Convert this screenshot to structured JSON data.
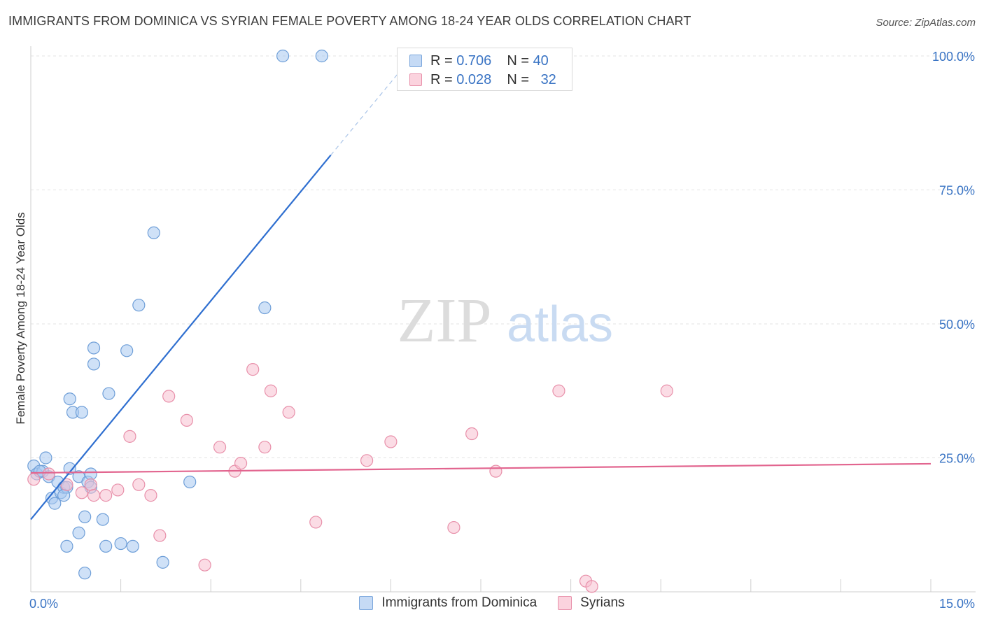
{
  "title": "IMMIGRANTS FROM DOMINICA VS SYRIAN FEMALE POVERTY AMONG 18-24 YEAR OLDS CORRELATION CHART",
  "source": "Source: ZipAtlas.com",
  "watermark": {
    "zip": "ZIP",
    "atlas": "atlas"
  },
  "legend": {
    "rows": [
      {
        "r_label": "R = ",
        "r_value": "0.706",
        "n_label": "N = ",
        "n_value": "40",
        "color": "#a8c8f0",
        "border": "#7aa6dc"
      },
      {
        "r_label": "R = ",
        "r_value": "0.028",
        "n_label": "N = ",
        "n_value": "32",
        "color": "#f8c0d0",
        "border": "#e890aa"
      }
    ]
  },
  "bottom_legend": [
    {
      "label": "Immigrants from Dominica",
      "color": "#c5daf5",
      "border": "#7aa6dc"
    },
    {
      "label": "Syrians",
      "color": "#fbd3de",
      "border": "#e890aa"
    }
  ],
  "chart_data": {
    "type": "scatter",
    "title": "IMMIGRANTS FROM DOMINICA VS SYRIAN FEMALE POVERTY AMONG 18-24 YEAR OLDS CORRELATION CHART",
    "xlabel": "",
    "ylabel": "Female Poverty Among 18-24 Year Olds",
    "xlim": [
      0,
      15
    ],
    "ylim": [
      0,
      100
    ],
    "x_tick_labels": [
      "0.0%",
      "15.0%"
    ],
    "y_tick_labels": [
      "25.0%",
      "50.0%",
      "75.0%",
      "100.0%"
    ],
    "y_ticks": [
      25,
      50,
      75,
      100
    ],
    "grid": true,
    "series": [
      {
        "name": "Immigrants from Dominica",
        "color": "#a8c8f0",
        "stroke": "#6f9fd8",
        "line_color": "#2f6fd0",
        "trend": {
          "x0": 0,
          "y0": 13.5,
          "x1": 5.0,
          "y1": 81.5,
          "dash_to_x": 6.2,
          "dash_to_y": 97.8
        },
        "points": [
          [
            0.05,
            23.5
          ],
          [
            0.1,
            22.0
          ],
          [
            0.2,
            22.5
          ],
          [
            0.3,
            21.5
          ],
          [
            0.25,
            25.0
          ],
          [
            0.35,
            17.5
          ],
          [
            0.4,
            16.5
          ],
          [
            0.45,
            20.5
          ],
          [
            0.5,
            18.5
          ],
          [
            0.55,
            19.5
          ],
          [
            0.6,
            8.5
          ],
          [
            0.6,
            19.5
          ],
          [
            0.65,
            36.0
          ],
          [
            0.7,
            33.5
          ],
          [
            0.65,
            23.0
          ],
          [
            0.8,
            11.0
          ],
          [
            0.8,
            21.5
          ],
          [
            0.85,
            33.5
          ],
          [
            0.9,
            14.0
          ],
          [
            0.9,
            3.5
          ],
          [
            0.95,
            20.5
          ],
          [
            1.0,
            19.5
          ],
          [
            1.0,
            22.0
          ],
          [
            1.05,
            42.5
          ],
          [
            1.05,
            45.5
          ],
          [
            1.2,
            13.5
          ],
          [
            1.25,
            8.5
          ],
          [
            1.3,
            37.0
          ],
          [
            1.5,
            9.0
          ],
          [
            1.6,
            45.0
          ],
          [
            1.7,
            8.5
          ],
          [
            1.8,
            53.5
          ],
          [
            2.05,
            67.0
          ],
          [
            2.2,
            5.5
          ],
          [
            2.65,
            20.5
          ],
          [
            3.9,
            53.0
          ],
          [
            4.2,
            100.0
          ],
          [
            4.85,
            100.0
          ],
          [
            0.15,
            22.5
          ],
          [
            0.55,
            18.0
          ]
        ]
      },
      {
        "name": "Syrians",
        "color": "#f8c0d0",
        "stroke": "#e890aa",
        "line_color": "#e2658f",
        "trend": {
          "x0": 0,
          "y0": 22.2,
          "x1": 15,
          "y1": 23.9
        },
        "points": [
          [
            0.05,
            21.0
          ],
          [
            0.3,
            22.0
          ],
          [
            0.6,
            20.0
          ],
          [
            0.85,
            18.5
          ],
          [
            1.0,
            20.0
          ],
          [
            1.05,
            18.0
          ],
          [
            1.25,
            18.0
          ],
          [
            1.45,
            19.0
          ],
          [
            1.65,
            29.0
          ],
          [
            1.8,
            20.0
          ],
          [
            2.0,
            18.0
          ],
          [
            2.15,
            10.5
          ],
          [
            2.3,
            36.5
          ],
          [
            2.6,
            32.0
          ],
          [
            2.9,
            5.0
          ],
          [
            3.15,
            27.0
          ],
          [
            3.4,
            22.5
          ],
          [
            3.5,
            24.0
          ],
          [
            3.7,
            41.5
          ],
          [
            3.9,
            27.0
          ],
          [
            4.0,
            37.5
          ],
          [
            4.3,
            33.5
          ],
          [
            4.75,
            13.0
          ],
          [
            5.6,
            24.5
          ],
          [
            6.0,
            28.0
          ],
          [
            7.05,
            12.0
          ],
          [
            7.35,
            29.5
          ],
          [
            7.75,
            22.5
          ],
          [
            8.8,
            37.5
          ],
          [
            9.25,
            2.0
          ],
          [
            9.35,
            1.0
          ],
          [
            10.6,
            37.5
          ]
        ]
      }
    ]
  }
}
